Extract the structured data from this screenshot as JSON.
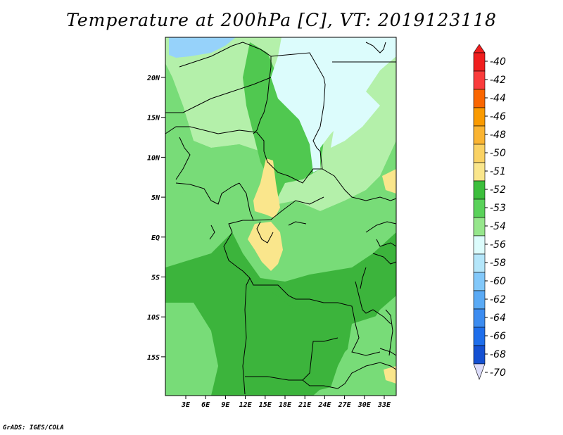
{
  "title": "Temperature at 200hPa [C], VT: 2019123118",
  "credit": "GrADS: IGES/COLA",
  "map": {
    "lat_labels": [
      "20N",
      "15N",
      "10N",
      "5N",
      "EQ",
      "5S",
      "10S",
      "15S"
    ],
    "lon_labels": [
      "3E",
      "6E",
      "9E",
      "12E",
      "15E",
      "18E",
      "21E",
      "24E",
      "27E",
      "30E",
      "33E"
    ],
    "palette": {
      "lightblue": "#96d2fa",
      "verypale": "#dcfcfc",
      "palegreen": "#b4f0aa",
      "midgreen": "#78dc78",
      "green": "#50c850",
      "darkgreen": "#3cb43c",
      "yellow": "#fae68c",
      "border": "#000000"
    }
  },
  "colorbar": {
    "levels": [
      {
        "label": "-40",
        "color": "#f01e1e"
      },
      {
        "label": "-42",
        "color": "#fa3c3c"
      },
      {
        "label": "-44",
        "color": "#fa6600"
      },
      {
        "label": "-46",
        "color": "#fa9a00"
      },
      {
        "label": "-48",
        "color": "#fab432"
      },
      {
        "label": "-50",
        "color": "#fad264"
      },
      {
        "label": "-51",
        "color": "#fae68c"
      },
      {
        "label": "-52",
        "color": "#3cbe3c"
      },
      {
        "label": "-53",
        "color": "#5ad25a"
      },
      {
        "label": "-54",
        "color": "#96e68c"
      },
      {
        "label": "-56",
        "color": "#dcfcfc"
      },
      {
        "label": "-58",
        "color": "#b4e6fa"
      },
      {
        "label": "-60",
        "color": "#82c8fa"
      },
      {
        "label": "-62",
        "color": "#5aaaf5"
      },
      {
        "label": "-64",
        "color": "#3c8cf0"
      },
      {
        "label": "-66",
        "color": "#1e6eeb"
      },
      {
        "label": "-68",
        "color": "#1450d2"
      },
      {
        "label": "-70",
        "color": "#0a28a0"
      }
    ],
    "top_arrow_color": "#f01e1e",
    "bottom_arrow_color": "#dcdcfa"
  }
}
